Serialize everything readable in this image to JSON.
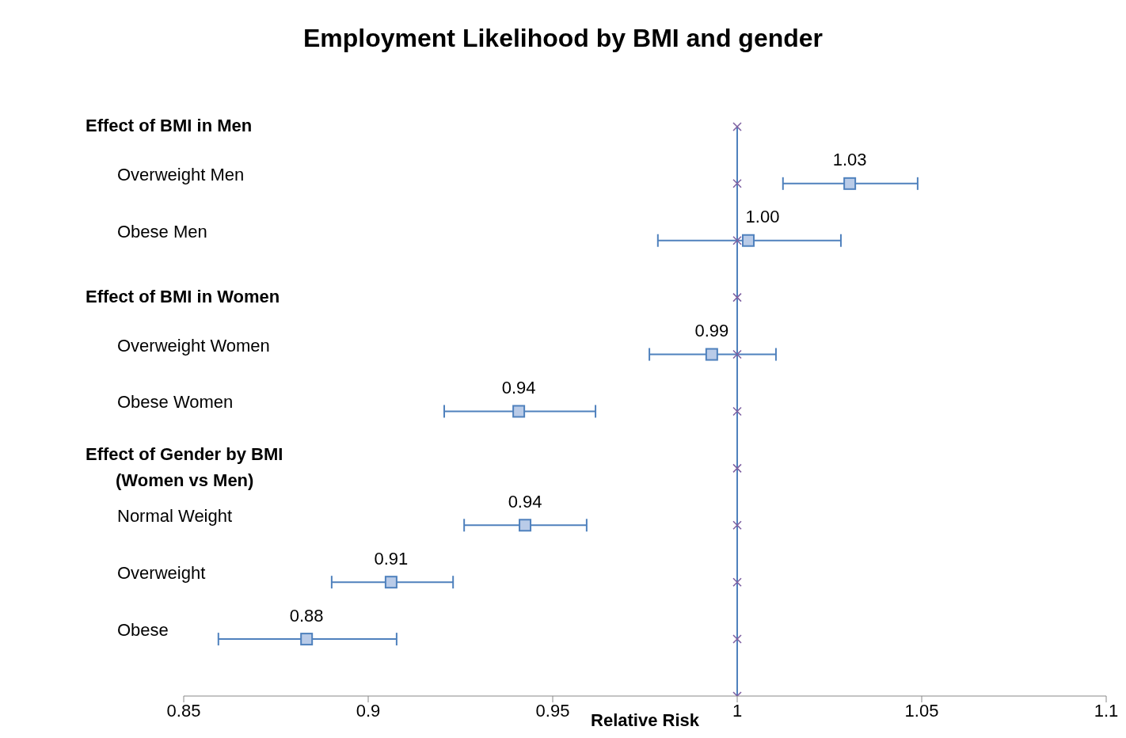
{
  "chart_data": {
    "type": "scatter",
    "title": "Employment Likelihood by BMI and gender",
    "xlabel": "Relative Risk",
    "orientation": "horizontal",
    "categories": [
      "Effect of BMI in Men",
      "Overweight Men",
      "Obese Men",
      "Effect of BMI in Women",
      "Overweight Women",
      "Obese Women",
      "Effect of Gender by BMI (Women vs Men)",
      "Normal Weight",
      "Overweight",
      "Obese",
      null
    ],
    "xlim": [
      0.85,
      1.1
    ],
    "xticks": [
      0.85,
      0.9,
      0.95,
      1,
      1.05,
      1.1
    ],
    "grid": false,
    "legend": false,
    "series": [
      {
        "color": "#4f81bd",
        "marker": "square",
        "values": [
          null,
          1.0305,
          1.003,
          null,
          0.9931,
          0.9408,
          null,
          0.9425,
          0.9062,
          0.8833,
          null
        ],
        "errors": [
          null,
          [
            1.0124,
            1.0489
          ],
          [
            0.9785,
            1.0281
          ],
          null,
          [
            0.9762,
            1.0105
          ],
          [
            0.9206,
            0.9616
          ],
          null,
          [
            0.926,
            0.9592
          ],
          [
            0.8901,
            0.923
          ],
          [
            0.8594,
            0.9077
          ],
          null
        ],
        "value_labels": [
          null,
          "1.03",
          "1.00",
          null,
          "0.99",
          "0.94",
          null,
          "0.94",
          "0.91",
          "0.88",
          null
        ]
      },
      {
        "color": "#7d5fa0",
        "marker": "cross",
        "values": [
          1,
          1,
          1,
          1,
          1,
          1,
          1,
          1,
          1,
          1,
          1
        ]
      }
    ],
    "ref_lines": [
      {
        "axis": "x",
        "value": 1,
        "color": "#4f81bd"
      }
    ]
  }
}
